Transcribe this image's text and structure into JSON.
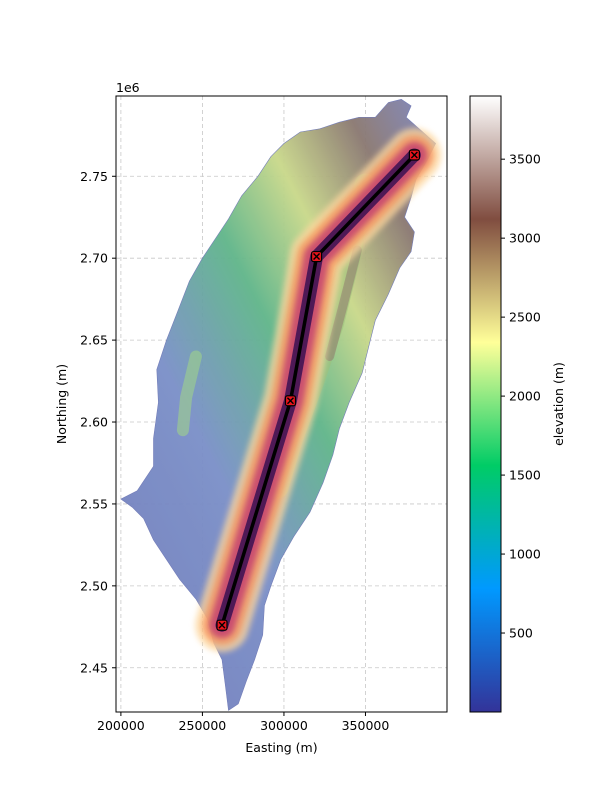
{
  "chart_data": {
    "type": "map",
    "xlabel": "Easting (m)",
    "ylabel": "Northing (m)",
    "y_offset_label": "1e6",
    "xlim": [
      197000,
      400000
    ],
    "ylim": [
      2.423,
      2.799
    ],
    "x_ticks": [
      200000,
      250000,
      300000,
      350000
    ],
    "x_tick_labels": [
      "200000",
      "250000",
      "300000",
      "350000"
    ],
    "y_ticks": [
      2.45,
      2.5,
      2.55,
      2.6,
      2.65,
      2.7,
      2.75
    ],
    "y_tick_labels": [
      "2.45",
      "2.50",
      "2.55",
      "2.60",
      "2.65",
      "2.70",
      "2.75"
    ],
    "grid": true,
    "route": {
      "points": [
        {
          "x": 262000,
          "y": 2.476
        },
        {
          "x": 304000,
          "y": 2.613
        },
        {
          "x": 320000,
          "y": 2.701
        },
        {
          "x": 380000,
          "y": 2.763
        }
      ],
      "line_color": "#000000",
      "marker_color": "#e8141c"
    },
    "colorbar": {
      "label": "elevation (m)",
      "min": 0,
      "max": 3900,
      "ticks": [
        500,
        1000,
        1500,
        2000,
        2500,
        3000,
        3500
      ],
      "tick_labels": [
        "500",
        "1000",
        "1500",
        "2000",
        "2500",
        "3000",
        "3500"
      ],
      "colormap": "terrain",
      "stops": [
        "#333399",
        "#0099ff",
        "#00cc66",
        "#ffff99",
        "#804d40",
        "#ffffff"
      ]
    },
    "island_outline": [
      [
        364000,
        2.795
      ],
      [
        372000,
        2.797
      ],
      [
        378000,
        2.793
      ],
      [
        375000,
        2.786
      ],
      [
        384000,
        2.778
      ],
      [
        393000,
        2.77
      ],
      [
        388000,
        2.76
      ],
      [
        381000,
        2.748
      ],
      [
        378000,
        2.737
      ],
      [
        374000,
        2.725
      ],
      [
        380000,
        2.716
      ],
      [
        378000,
        2.704
      ],
      [
        371000,
        2.694
      ],
      [
        364000,
        2.678
      ],
      [
        356000,
        2.662
      ],
      [
        352000,
        2.646
      ],
      [
        348000,
        2.63
      ],
      [
        340000,
        2.612
      ],
      [
        334000,
        2.596
      ],
      [
        330000,
        2.58
      ],
      [
        324000,
        2.563
      ],
      [
        316000,
        2.545
      ],
      [
        306000,
        2.53
      ],
      [
        298000,
        2.516
      ],
      [
        292000,
        2.5
      ],
      [
        288000,
        2.488
      ],
      [
        287000,
        2.47
      ],
      [
        282000,
        2.455
      ],
      [
        277000,
        2.442
      ],
      [
        272000,
        2.428
      ],
      [
        266000,
        2.424
      ],
      [
        264000,
        2.44
      ],
      [
        262000,
        2.455
      ],
      [
        257000,
        2.465
      ],
      [
        253000,
        2.48
      ],
      [
        246000,
        2.492
      ],
      [
        236000,
        2.504
      ],
      [
        228000,
        2.516
      ],
      [
        220000,
        2.528
      ],
      [
        214000,
        2.541
      ],
      [
        207000,
        2.548
      ],
      [
        200000,
        2.553
      ],
      [
        210000,
        2.558
      ],
      [
        220000,
        2.573
      ],
      [
        220000,
        2.59
      ],
      [
        223000,
        2.612
      ],
      [
        222000,
        2.632
      ],
      [
        228000,
        2.65
      ],
      [
        235000,
        2.668
      ],
      [
        242000,
        2.686
      ],
      [
        250000,
        2.7
      ],
      [
        258000,
        2.712
      ],
      [
        266000,
        2.724
      ],
      [
        274000,
        2.738
      ],
      [
        284000,
        2.75
      ],
      [
        292000,
        2.762
      ],
      [
        300000,
        2.77
      ],
      [
        310000,
        2.777
      ],
      [
        322000,
        2.779
      ],
      [
        334000,
        2.783
      ],
      [
        346000,
        2.786
      ],
      [
        356000,
        2.786
      ]
    ]
  }
}
